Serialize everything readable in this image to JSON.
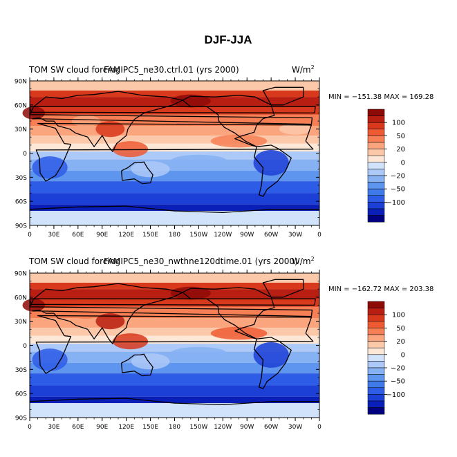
{
  "figure": {
    "title": "DJF-JJA"
  },
  "colors": {
    "levels": [
      "#000080",
      "#0a1fb8",
      "#1c3fd6",
      "#2d5ce6",
      "#3f7ae8",
      "#5e95ee",
      "#86b1f3",
      "#adc9f7",
      "#d1e2fb",
      "#fde8d8",
      "#fcc8aa",
      "#faa57e",
      "#f67f55",
      "#ee5a32",
      "#d8381c",
      "#b81e12",
      "#8e0a07"
    ],
    "land": "#000000"
  },
  "colorbar": {
    "labels": [
      "100",
      "50",
      "20",
      "0",
      "−20",
      "−50",
      "−100"
    ]
  },
  "axes": {
    "lat_labels": [
      "90N",
      "60N",
      "30N",
      "0",
      "30S",
      "60S",
      "90S"
    ],
    "lon_labels": [
      "0",
      "30E",
      "60E",
      "90E",
      "120E",
      "150E",
      "180",
      "150W",
      "120W",
      "90W",
      "60W",
      "30W",
      "0"
    ]
  },
  "panels": [
    {
      "left_title": "TOM SW cloud forcing",
      "case_name": "FAMIPC5_ne30.ctrl.01 (yrs 2000)",
      "units_base": "W/m",
      "units_exp": "2",
      "minmax": "MIN = −151.38  MAX = 169.28"
    },
    {
      "left_title": "TOM SW cloud forcing",
      "case_name": "FAMIPC5_ne30_nwthne120dtime.01 (yrs 2000)",
      "units_base": "W/m",
      "units_exp": "2",
      "minmax": "MIN = −162.72  MAX = 203.38"
    }
  ]
}
